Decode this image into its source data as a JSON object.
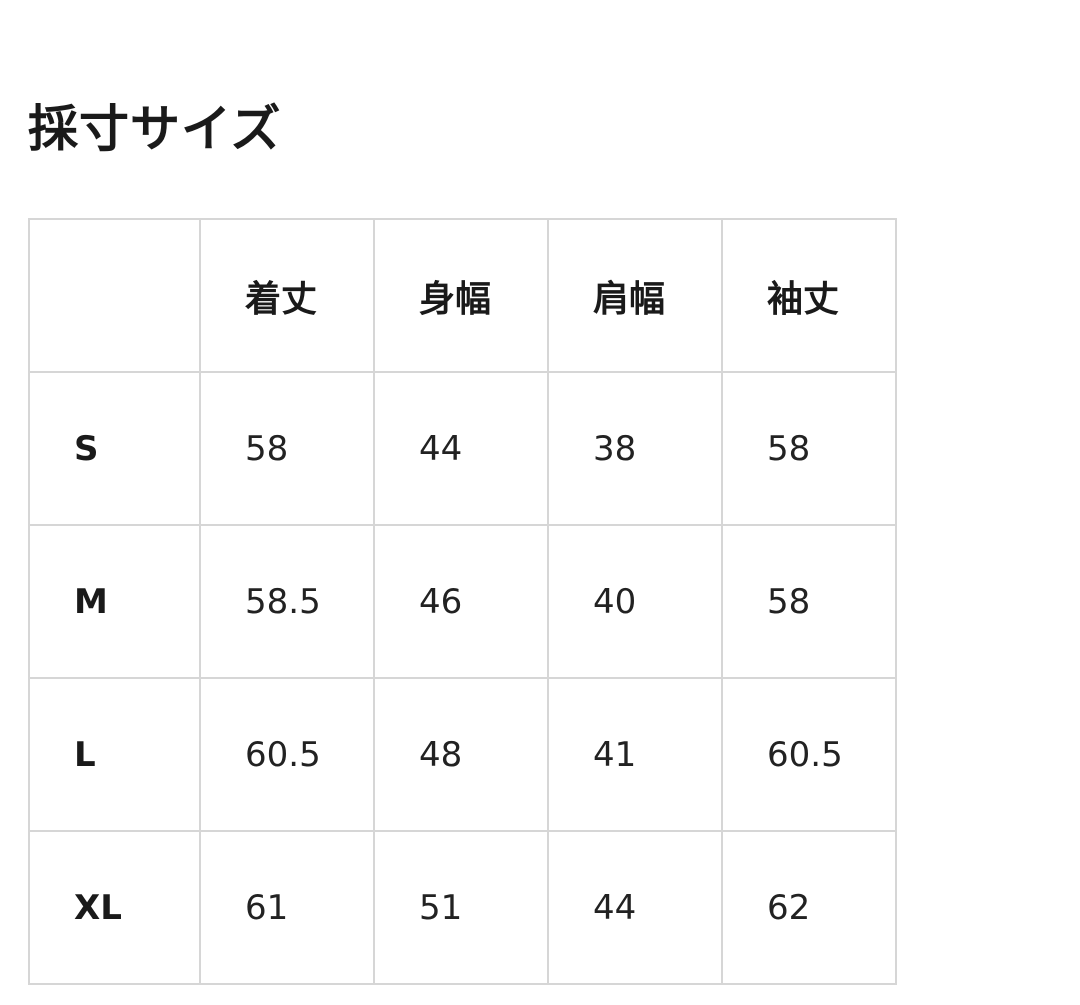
{
  "title": "採寸サイズ",
  "table": {
    "headers": [
      "",
      "着丈",
      "身幅",
      "肩幅",
      "袖丈"
    ],
    "rows": [
      {
        "size": "S",
        "values": [
          "58",
          "44",
          "38",
          "58"
        ]
      },
      {
        "size": "M",
        "values": [
          "58.5",
          "46",
          "40",
          "58"
        ]
      },
      {
        "size": "L",
        "values": [
          "60.5",
          "48",
          "41",
          "60.5"
        ]
      },
      {
        "size": "XL",
        "values": [
          "61",
          "51",
          "44",
          "62"
        ]
      }
    ]
  },
  "colors": {
    "border": "#d6d6d6",
    "text": "#1a1a1a",
    "background": "#ffffff"
  }
}
